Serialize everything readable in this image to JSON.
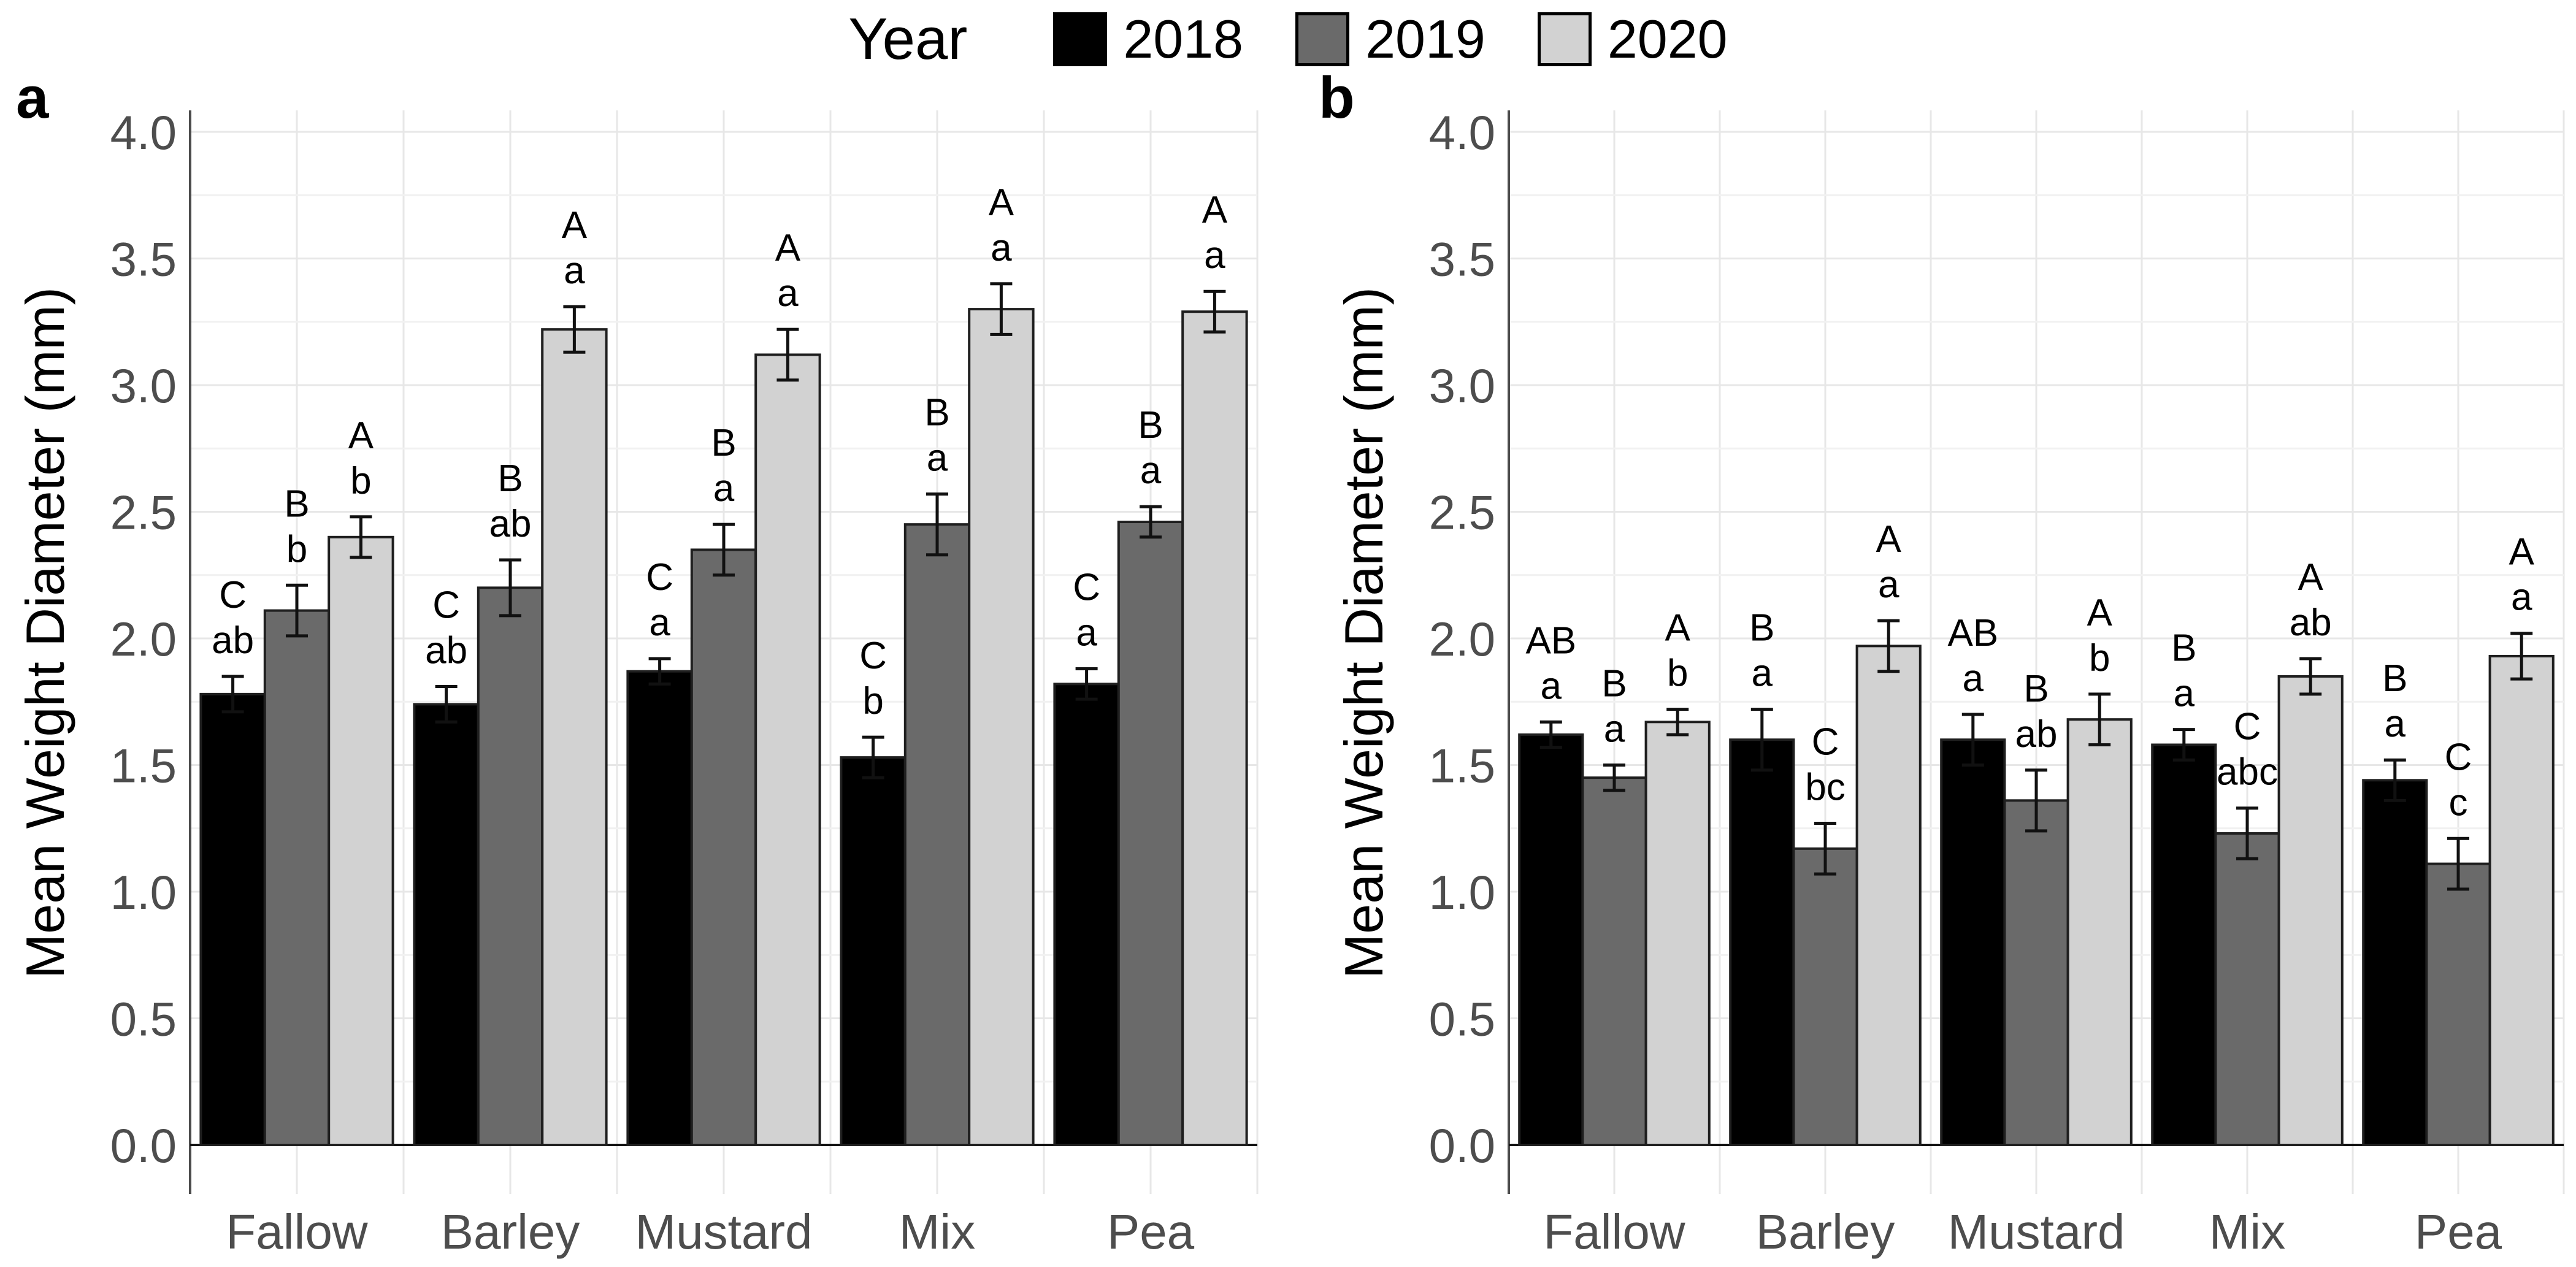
{
  "legend": {
    "title": "Year",
    "items": [
      {
        "label": "2018",
        "color": "#000000"
      },
      {
        "label": "2019",
        "color": "#6a6a6a"
      },
      {
        "label": "2020",
        "color": "#d2d2d2"
      }
    ]
  },
  "colors": {
    "background": "#ffffff",
    "grid_major": "#e7e7e7",
    "grid_minor": "#f1f1f1",
    "axis_line": "#4d4d4d",
    "tick_text": "#4d4d4d",
    "baseline": "#111111",
    "bar_stroke": "#1f1f1f",
    "error_bar": "#111111",
    "sig_text": "#000000"
  },
  "chart_data": [
    {
      "panel_label": "a",
      "type": "bar",
      "title": "",
      "xlabel": "",
      "ylabel": "Mean Weight Diameter (mm)",
      "ylim": [
        0,
        4.1
      ],
      "grid": true,
      "legend_position": "top",
      "categories": [
        "Fallow",
        "Barley",
        "Mustard",
        "Mix",
        "Pea"
      ],
      "yticks": [
        "0.0",
        "0.5",
        "1.0",
        "1.5",
        "2.0",
        "2.5",
        "3.0",
        "3.5",
        "4.0"
      ],
      "series": [
        {
          "name": "2018",
          "values": [
            1.78,
            1.74,
            1.87,
            1.53,
            1.82
          ],
          "errors": [
            0.07,
            0.07,
            0.05,
            0.08,
            0.06
          ],
          "sig_upper": [
            "C",
            "C",
            "C",
            "C",
            "C"
          ],
          "sig_lower": [
            "ab",
            "ab",
            "a",
            "b",
            "a"
          ]
        },
        {
          "name": "2019",
          "values": [
            2.11,
            2.2,
            2.35,
            2.45,
            2.46
          ],
          "errors": [
            0.1,
            0.11,
            0.1,
            0.12,
            0.06
          ],
          "sig_upper": [
            "B",
            "B",
            "B",
            "B",
            "B"
          ],
          "sig_lower": [
            "b",
            "ab",
            "a",
            "a",
            "a"
          ]
        },
        {
          "name": "2020",
          "values": [
            2.4,
            3.22,
            3.12,
            3.3,
            3.29
          ],
          "errors": [
            0.08,
            0.09,
            0.1,
            0.1,
            0.08
          ],
          "sig_upper": [
            "A",
            "A",
            "A",
            "A",
            "A"
          ],
          "sig_lower": [
            "b",
            "a",
            "a",
            "a",
            "a"
          ]
        }
      ]
    },
    {
      "panel_label": "b",
      "type": "bar",
      "title": "",
      "xlabel": "",
      "ylabel": "Mean Weight Diameter (mm)",
      "ylim": [
        0,
        4.1
      ],
      "grid": true,
      "legend_position": "top",
      "categories": [
        "Fallow",
        "Barley",
        "Mustard",
        "Mix",
        "Pea"
      ],
      "yticks": [
        "0.0",
        "0.5",
        "1.0",
        "1.5",
        "2.0",
        "2.5",
        "3.0",
        "3.5",
        "4.0"
      ],
      "series": [
        {
          "name": "2018",
          "values": [
            1.62,
            1.6,
            1.6,
            1.58,
            1.44
          ],
          "errors": [
            0.05,
            0.12,
            0.1,
            0.06,
            0.08
          ],
          "sig_upper": [
            "AB",
            "B",
            "AB",
            "B",
            "B"
          ],
          "sig_lower": [
            "a",
            "a",
            "a",
            "a",
            "a"
          ]
        },
        {
          "name": "2019",
          "values": [
            1.45,
            1.17,
            1.36,
            1.23,
            1.11
          ],
          "errors": [
            0.05,
            0.1,
            0.12,
            0.1,
            0.1
          ],
          "sig_upper": [
            "B",
            "C",
            "B",
            "C",
            "C"
          ],
          "sig_lower": [
            "a",
            "bc",
            "ab",
            "abc",
            "c"
          ]
        },
        {
          "name": "2020",
          "values": [
            1.67,
            1.97,
            1.68,
            1.85,
            1.93
          ],
          "errors": [
            0.05,
            0.1,
            0.1,
            0.07,
            0.09
          ],
          "sig_upper": [
            "A",
            "A",
            "A",
            "A",
            "A"
          ],
          "sig_lower": [
            "b",
            "a",
            "b",
            "ab",
            "a"
          ]
        }
      ]
    }
  ]
}
